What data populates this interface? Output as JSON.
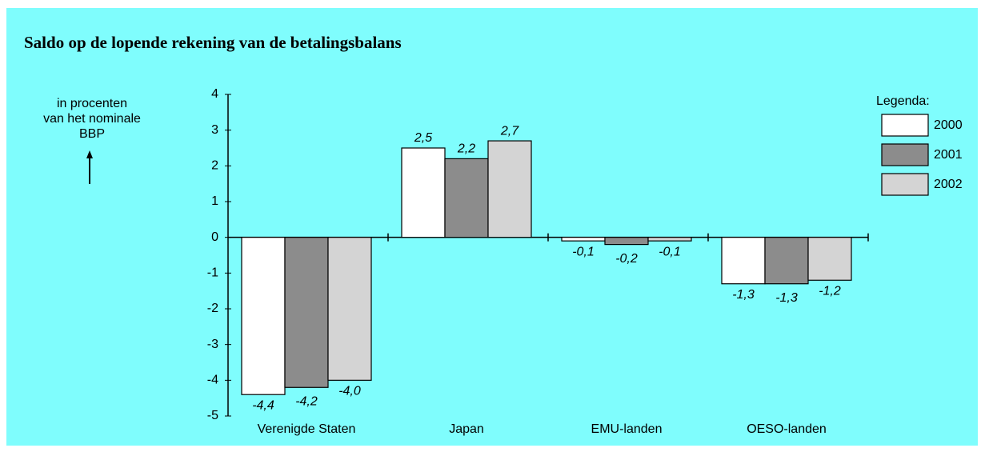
{
  "chart_data": {
    "type": "bar",
    "title": "Saldo op de lopende rekening van de betalingsbalans",
    "y_label": [
      "in procenten",
      "van het nominale",
      "BBP"
    ],
    "legend_title": "Legenda:",
    "legend": "right",
    "categories": [
      "Verenigde Staten",
      "Japan",
      "EMU-landen",
      "OESO-landen"
    ],
    "series": [
      {
        "name": "2000",
        "color": "#ffffff",
        "values": [
          -4.4,
          2.5,
          -0.1,
          -1.3
        ],
        "value_labels": [
          "-4,4",
          "2,5",
          "-0,1",
          "-1,3"
        ]
      },
      {
        "name": "2001",
        "color": "#8c8c8c",
        "values": [
          -4.2,
          2.2,
          -0.2,
          -1.3
        ],
        "value_labels": [
          "-4,2",
          "2,2",
          "-0,2",
          "-1,3"
        ]
      },
      {
        "name": "2002",
        "color": "#d4d4d4",
        "values": [
          -4.0,
          2.7,
          -0.1,
          -1.2
        ],
        "value_labels": [
          "-4,0",
          "2,7",
          "-0,1",
          "-1,2"
        ]
      }
    ],
    "ylim": [
      -5,
      4
    ],
    "yticks": [
      -5,
      -4,
      -3,
      -2,
      -1,
      0,
      1,
      2,
      3,
      4
    ]
  }
}
